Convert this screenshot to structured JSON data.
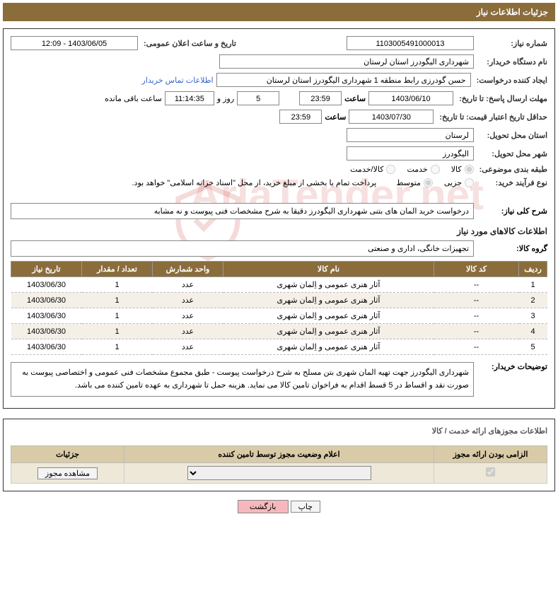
{
  "header": {
    "title": "جزئیات اطلاعات نیاز"
  },
  "fields": {
    "need_no_lbl": "شماره نیاز:",
    "need_no": "1103005491000013",
    "announce_lbl": "تاریخ و ساعت اعلان عمومی:",
    "announce_val": "1403/06/05 - 12:09",
    "buyer_org_lbl": "نام دستگاه خریدار:",
    "buyer_org": "شهرداری الیگودرز استان لرستان",
    "requester_lbl": "ایجاد کننده درخواست:",
    "requester": "حسن گودرزی رابط منطقه 1 شهرداری الیگودرز استان لرستان",
    "contact_link": "اطلاعات تماس خریدار",
    "deadline_lbl": "مهلت ارسال پاسخ: تا تاریخ:",
    "deadline_date": "1403/06/10",
    "time_lbl": "ساعت",
    "deadline_time": "23:59",
    "days_remain": "5",
    "days_and": "روز و",
    "hours_remain": "11:14:35",
    "remain_suffix": "ساعت باقی مانده",
    "validity_lbl": "حداقل تاریخ اعتبار قیمت: تا تاریخ:",
    "validity_date": "1403/07/30",
    "validity_time": "23:59",
    "province_lbl": "استان محل تحویل:",
    "province": "لرستان",
    "city_lbl": "شهر محل تحویل:",
    "city": "الیگودرز",
    "subject_class_lbl": "طبقه بندی موضوعی:",
    "opt_goods": "کالا",
    "opt_service": "خدمت",
    "opt_both": "کالا/خدمت",
    "buy_type_lbl": "نوع فرآیند خرید:",
    "opt_partial": "جزیی",
    "opt_medium": "متوسط",
    "pay_note": "پرداخت تمام یا بخشی از مبلغ خرید، از محل \"اسناد خزانه اسلامی\" خواهد بود.",
    "summary_lbl": "شرح کلی نیاز:",
    "summary": "درخواست خرید المان های بتنی شهرداری الیگودرز دقیقا به شرح مشخصات فنی پیوست و نه مشابه",
    "goods_info_title": "اطلاعات کالاهای مورد نیاز",
    "group_lbl": "گروه کالا:",
    "group": "تجهیزات خانگی، اداری و صنعتی",
    "buyer_notes_lbl": "توضیحات خریدار:",
    "buyer_notes": "شهرداری الیگودرز جهت تهیه  المان شهری بتن مسلح به شرح درخواست پیوست - طبق مجموع مشخصات فنی عمومی و اختصاصی پیوست به صورت نقد و اقساط در 5 قسط  اقدام به فراخوان تامین کالا می نماید. هزینه حمل تا شهرداری به عهده تامین کننده می باشد."
  },
  "goods_table": {
    "headers": {
      "row": "ردیف",
      "code": "کد کالا",
      "name": "نام کالا",
      "unit": "واحد شمارش",
      "qty": "تعداد / مقدار",
      "date": "تاریخ نیاز"
    },
    "rows": [
      {
        "row": "1",
        "code": "--",
        "name": "آثار هنری عمومی و اِلمان شهری",
        "unit": "عدد",
        "qty": "1",
        "date": "1403/06/30"
      },
      {
        "row": "2",
        "code": "--",
        "name": "آثار هنری عمومی و اِلمان شهری",
        "unit": "عدد",
        "qty": "1",
        "date": "1403/06/30"
      },
      {
        "row": "3",
        "code": "--",
        "name": "آثار هنری عمومی و اِلمان شهری",
        "unit": "عدد",
        "qty": "1",
        "date": "1403/06/30"
      },
      {
        "row": "4",
        "code": "--",
        "name": "آثار هنری عمومی و اِلمان شهری",
        "unit": "عدد",
        "qty": "1",
        "date": "1403/06/30"
      },
      {
        "row": "5",
        "code": "--",
        "name": "آثار هنری عمومی و اِلمان شهری",
        "unit": "عدد",
        "qty": "1",
        "date": "1403/06/30"
      }
    ]
  },
  "license": {
    "section_title": "اطلاعات مجوزهای ارائه خدمت / کالا",
    "headers": {
      "mandatory": "الزامی بودن ارائه مجوز",
      "status": "اعلام وضعیت مجوز توسط تامین کننده",
      "details": "جزئیات"
    },
    "view_btn": "مشاهده مجوز"
  },
  "footer": {
    "print": "چاپ",
    "back": "بازگشت"
  },
  "colors": {
    "header_bg": "#8a6d3b",
    "th_alt_bg": "#d9cba7",
    "btn_pink": "#f7b8bd"
  }
}
